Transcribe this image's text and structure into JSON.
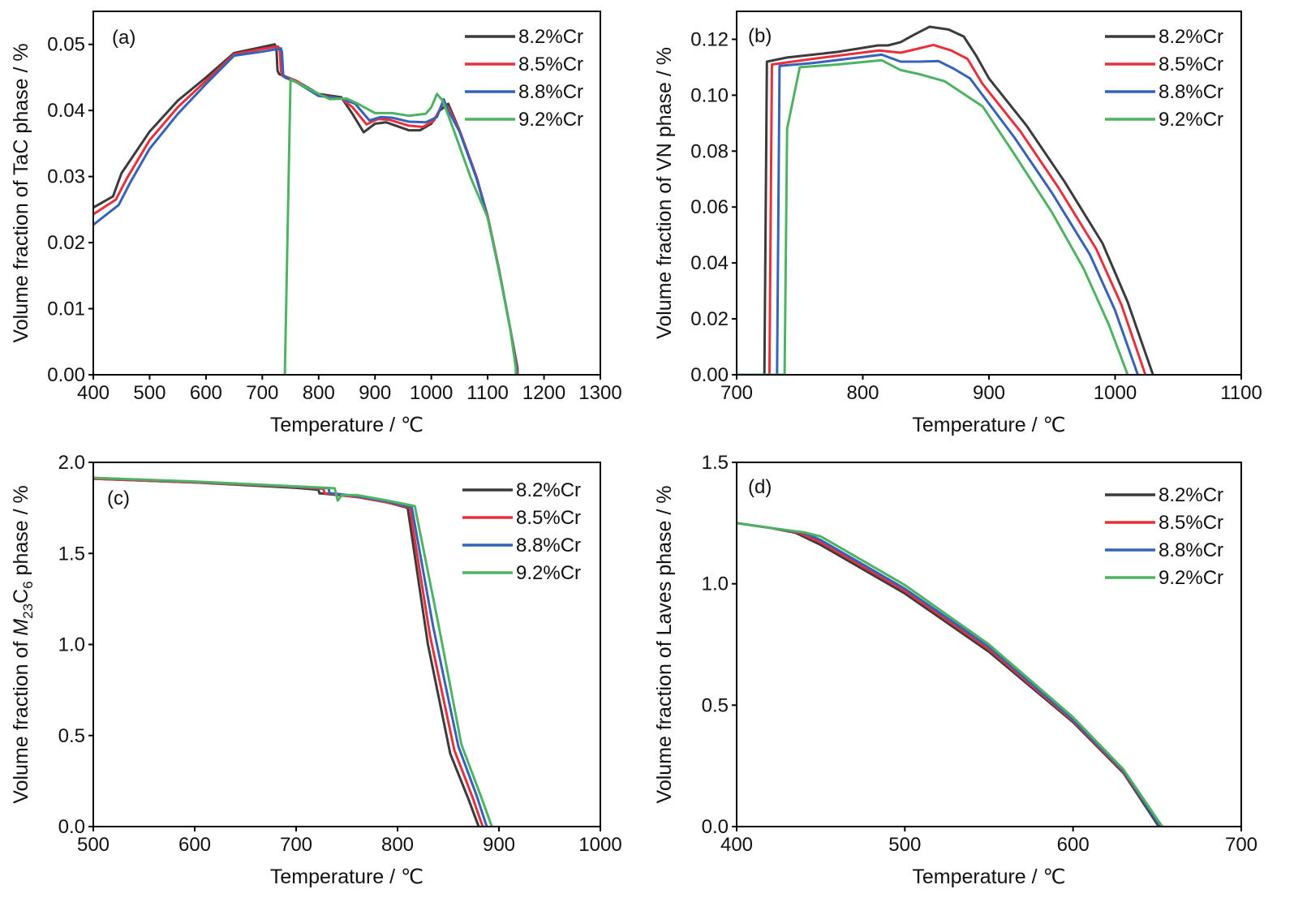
{
  "colors": {
    "8.2%Cr": "#3b3b3b",
    "8.5%Cr": "#e8303a",
    "8.8%Cr": "#3563b9",
    "9.2%Cr": "#4db362"
  },
  "chart_data": [
    {
      "type": "line",
      "panel_label": "(a)",
      "title": "",
      "xlabel": "Temperature / ℃",
      "ylabel": "Volume fraction of TaC phase / %",
      "ylabel_parts": [
        "Volume fraction of TaC phase / %"
      ],
      "xlim": [
        400,
        1300
      ],
      "ylim": [
        0,
        0.055
      ],
      "xticks": [
        400,
        500,
        600,
        700,
        800,
        900,
        1000,
        1100,
        1200,
        1300
      ],
      "yticks": [
        0.0,
        0.01,
        0.02,
        0.03,
        0.04,
        0.05
      ],
      "ytick_labels": [
        "0.00",
        "0.01",
        "0.02",
        "0.03",
        "0.04",
        "0.05"
      ],
      "legend": "top-right",
      "grid": false,
      "series": [
        {
          "name": "8.2%Cr",
          "x": [
            400,
            435,
            450,
            500,
            550,
            600,
            650,
            700,
            722,
            725,
            727,
            730,
            760,
            800,
            840,
            860,
            880,
            900,
            920,
            960,
            980,
            1000,
            1015,
            1030,
            1050,
            1080,
            1100,
            1120,
            1140,
            1153,
            1153
          ],
          "y": [
            0.0253,
            0.027,
            0.0305,
            0.0368,
            0.0415,
            0.045,
            0.0487,
            0.0496,
            0.05,
            0.0495,
            0.046,
            0.0455,
            0.0445,
            0.0425,
            0.042,
            0.0395,
            0.0367,
            0.038,
            0.0382,
            0.037,
            0.037,
            0.038,
            0.04,
            0.041,
            0.037,
            0.03,
            0.024,
            0.016,
            0.007,
            0.001,
            0
          ]
        },
        {
          "name": "8.5%Cr",
          "x": [
            400,
            440,
            460,
            500,
            550,
            600,
            650,
            700,
            728,
            731,
            733,
            736,
            760,
            800,
            840,
            860,
            885,
            905,
            925,
            960,
            985,
            1005,
            1020,
            1030,
            1050,
            1080,
            1100,
            1120,
            1140,
            1152,
            1152
          ],
          "y": [
            0.0243,
            0.0265,
            0.0298,
            0.0355,
            0.0405,
            0.0445,
            0.0485,
            0.0493,
            0.0497,
            0.049,
            0.046,
            0.0452,
            0.0445,
            0.0423,
            0.0418,
            0.0405,
            0.0379,
            0.0387,
            0.0386,
            0.0377,
            0.0375,
            0.0385,
            0.041,
            0.0405,
            0.037,
            0.03,
            0.024,
            0.016,
            0.007,
            0.001,
            0
          ]
        },
        {
          "name": "8.8%Cr",
          "x": [
            400,
            445,
            465,
            500,
            550,
            600,
            650,
            700,
            733,
            735,
            737,
            740,
            760,
            800,
            840,
            865,
            890,
            910,
            930,
            960,
            990,
            1010,
            1022,
            1030,
            1050,
            1080,
            1100,
            1120,
            1140,
            1151,
            1151
          ],
          "y": [
            0.0227,
            0.0257,
            0.029,
            0.0342,
            0.0395,
            0.044,
            0.0483,
            0.0489,
            0.0494,
            0.0488,
            0.0455,
            0.045,
            0.0443,
            0.0422,
            0.0418,
            0.041,
            0.0385,
            0.039,
            0.0389,
            0.0383,
            0.0382,
            0.039,
            0.0417,
            0.04,
            0.0368,
            0.0298,
            0.0238,
            0.0158,
            0.007,
            0.001,
            0
          ]
        },
        {
          "name": "9.2%Cr",
          "x": [
            740,
            750,
            760,
            800,
            820,
            850,
            870,
            900,
            930,
            960,
            990,
            1000,
            1010,
            1020,
            1040,
            1070,
            1100,
            1120,
            1140,
            1150,
            1150
          ],
          "y": [
            0,
            0.0447,
            0.0443,
            0.0425,
            0.0417,
            0.0418,
            0.041,
            0.0396,
            0.0396,
            0.0392,
            0.0395,
            0.0405,
            0.0425,
            0.0415,
            0.037,
            0.0298,
            0.0238,
            0.0158,
            0.007,
            0.001,
            0
          ]
        }
      ]
    },
    {
      "type": "line",
      "panel_label": "(b)",
      "title": "",
      "xlabel": "Temperature / ℃",
      "ylabel": "Volume fraction of VN phase / %",
      "ylabel_parts": [
        "Volume fraction of VN phase / %"
      ],
      "xlim": [
        700,
        1100
      ],
      "ylim": [
        0,
        0.13
      ],
      "xticks": [
        700,
        800,
        900,
        1000,
        1100
      ],
      "yticks": [
        0.0,
        0.02,
        0.04,
        0.06,
        0.08,
        0.1,
        0.12
      ],
      "ytick_labels": [
        "0.00",
        "0.02",
        "0.04",
        "0.06",
        "0.08",
        "0.10",
        "0.12"
      ],
      "legend": "top-right",
      "grid": false,
      "series": [
        {
          "name": "8.2%Cr",
          "x": [
            700,
            722,
            724,
            740,
            780,
            812,
            820,
            830,
            840,
            853,
            868,
            880,
            890,
            900,
            930,
            960,
            990,
            1010,
            1030
          ],
          "y": [
            0,
            0,
            0.112,
            0.1135,
            0.1155,
            0.1178,
            0.1178,
            0.119,
            0.1215,
            0.1245,
            0.1235,
            0.121,
            0.114,
            0.106,
            0.089,
            0.069,
            0.047,
            0.026,
            0
          ]
        },
        {
          "name": "8.5%Cr",
          "x": [
            700,
            726,
            728,
            760,
            813,
            830,
            845,
            856,
            870,
            883,
            895,
            925,
            955,
            985,
            1005,
            1024
          ],
          "y": [
            0,
            0,
            0.111,
            0.113,
            0.116,
            0.1152,
            0.1168,
            0.118,
            0.116,
            0.113,
            0.104,
            0.087,
            0.067,
            0.045,
            0.025,
            0
          ]
        },
        {
          "name": "8.8%Cr",
          "x": [
            700,
            732,
            734,
            760,
            815,
            830,
            845,
            860,
            872,
            885,
            895,
            920,
            950,
            980,
            1000,
            1018
          ],
          "y": [
            0,
            0,
            0.1105,
            0.1115,
            0.1145,
            0.112,
            0.112,
            0.1122,
            0.1095,
            0.106,
            0.1,
            0.085,
            0.065,
            0.043,
            0.023,
            0
          ]
        },
        {
          "name": "9.2%Cr",
          "x": [
            700,
            738,
            740,
            750,
            780,
            815,
            830,
            845,
            865,
            880,
            895,
            920,
            950,
            975,
            995,
            1010
          ],
          "y": [
            0,
            0,
            0.088,
            0.11,
            0.111,
            0.1125,
            0.109,
            0.1075,
            0.105,
            0.1005,
            0.096,
            0.079,
            0.058,
            0.038,
            0.018,
            0
          ]
        }
      ]
    },
    {
      "type": "line",
      "panel_label": "(c)",
      "title": "",
      "xlabel": "Temperature / ℃",
      "ylabel": "Volume fraction of M23C6 phase / %",
      "ylabel_parts": [
        "Volume fraction of ",
        "M",
        "23",
        "C",
        "6",
        " phase / %"
      ],
      "xlim": [
        500,
        1000
      ],
      "ylim": [
        0,
        2.0
      ],
      "xticks": [
        500,
        600,
        700,
        800,
        900,
        1000
      ],
      "yticks": [
        0.0,
        0.5,
        1.0,
        1.5,
        2.0
      ],
      "ytick_labels": [
        "0.0",
        "0.5",
        "1.0",
        "1.5",
        "2.0"
      ],
      "legend": "top-right",
      "grid": false,
      "series": [
        {
          "name": "8.2%Cr",
          "x": [
            500,
            600,
            700,
            722,
            723,
            725,
            760,
            790,
            810,
            830,
            852,
            870,
            880
          ],
          "y": [
            1.91,
            1.89,
            1.86,
            1.85,
            1.83,
            1.83,
            1.81,
            1.78,
            1.75,
            1.0,
            0.4,
            0.15,
            0
          ]
        },
        {
          "name": "8.5%Cr",
          "x": [
            500,
            600,
            700,
            727,
            728,
            731,
            760,
            790,
            812,
            832,
            856,
            874,
            884
          ],
          "y": [
            1.91,
            1.89,
            1.865,
            1.855,
            1.83,
            1.83,
            1.81,
            1.78,
            1.752,
            1.05,
            0.42,
            0.16,
            0
          ]
        },
        {
          "name": "8.8%Cr",
          "x": [
            500,
            600,
            700,
            732,
            733,
            736,
            760,
            790,
            814,
            835,
            860,
            878,
            888
          ],
          "y": [
            1.915,
            1.893,
            1.867,
            1.858,
            1.83,
            1.83,
            1.815,
            1.785,
            1.755,
            1.1,
            0.44,
            0.17,
            0
          ]
        },
        {
          "name": "9.2%Cr",
          "x": [
            500,
            600,
            700,
            738,
            741,
            745,
            760,
            790,
            817,
            840,
            863,
            882,
            893
          ],
          "y": [
            1.915,
            1.895,
            1.868,
            1.858,
            1.79,
            1.82,
            1.82,
            1.79,
            1.76,
            1.12,
            0.45,
            0.17,
            0
          ]
        }
      ]
    },
    {
      "type": "line",
      "panel_label": "(d)",
      "title": "",
      "xlabel": "Temperature / ℃",
      "ylabel": "Volume fraction of Laves phase / %",
      "ylabel_parts": [
        "Volume fraction of Laves phase / %"
      ],
      "xlim": [
        400,
        700
      ],
      "ylim": [
        0,
        1.5
      ],
      "xticks": [
        400,
        500,
        600,
        700
      ],
      "yticks": [
        0.0,
        0.5,
        1.0,
        1.5
      ],
      "ytick_labels": [
        "0.0",
        "0.5",
        "1.0",
        "1.5"
      ],
      "legend": "top-right",
      "grid": false,
      "series": [
        {
          "name": "8.2%Cr",
          "x": [
            400,
            420,
            435,
            450,
            500,
            550,
            600,
            630,
            651
          ],
          "y": [
            1.25,
            1.23,
            1.21,
            1.16,
            0.96,
            0.72,
            0.43,
            0.22,
            0
          ]
        },
        {
          "name": "8.5%Cr",
          "x": [
            400,
            420,
            437,
            450,
            500,
            550,
            600,
            630,
            652
          ],
          "y": [
            1.25,
            1.23,
            1.21,
            1.17,
            0.97,
            0.73,
            0.435,
            0.225,
            0
          ]
        },
        {
          "name": "8.8%Cr",
          "x": [
            400,
            420,
            440,
            450,
            500,
            550,
            600,
            630,
            652
          ],
          "y": [
            1.25,
            1.23,
            1.21,
            1.18,
            0.98,
            0.74,
            0.44,
            0.23,
            0
          ]
        },
        {
          "name": "9.2%Cr",
          "x": [
            400,
            420,
            440,
            450,
            500,
            550,
            600,
            630,
            653
          ],
          "y": [
            1.25,
            1.23,
            1.212,
            1.195,
            0.995,
            0.75,
            0.45,
            0.235,
            0
          ]
        }
      ]
    }
  ]
}
